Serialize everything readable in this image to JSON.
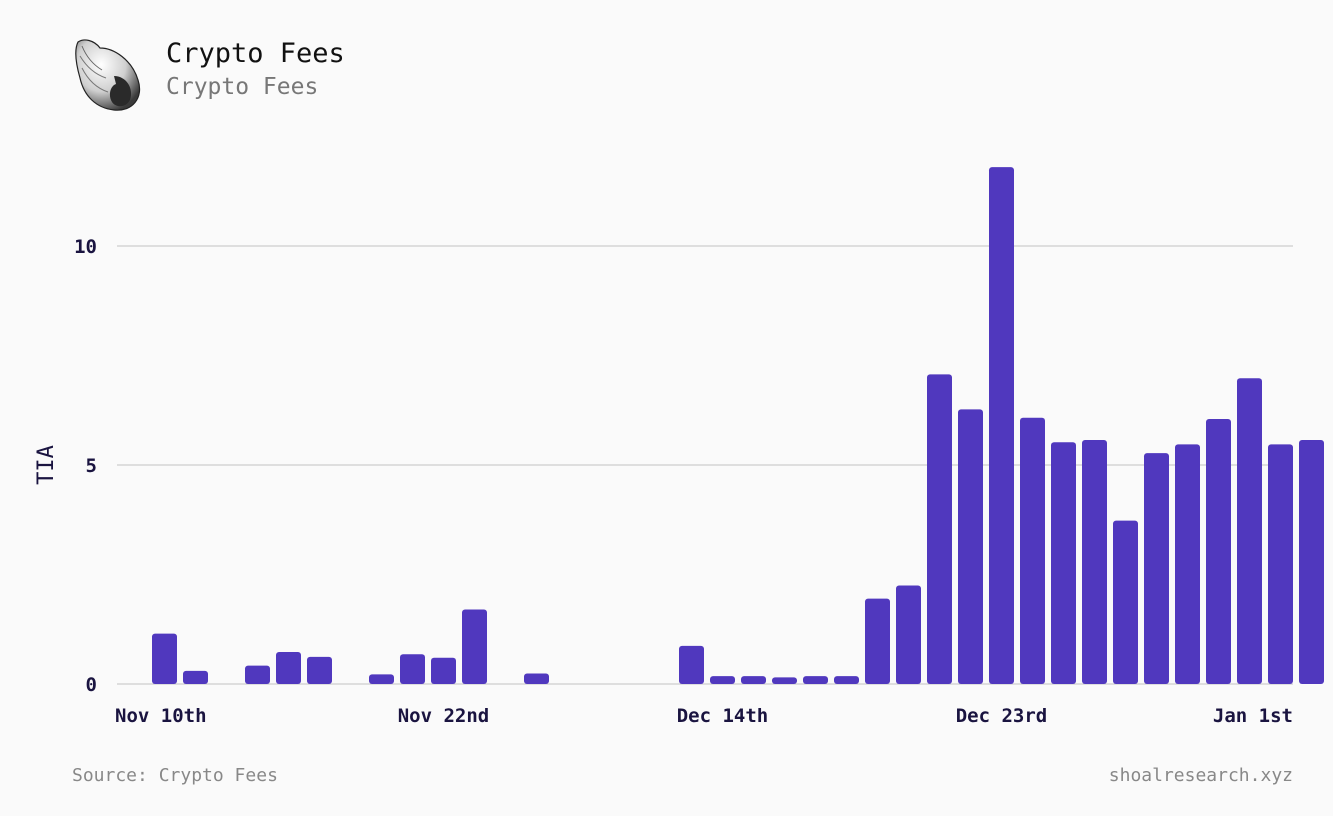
{
  "header": {
    "title": "Crypto Fees",
    "subtitle": "Crypto Fees",
    "logo_icon": "seashell-icon"
  },
  "footer": {
    "source": "Source: Crypto Fees",
    "site": "shoalresearch.xyz"
  },
  "colors": {
    "bar": "#5038be",
    "grid": "#d4d4d4",
    "axis_text": "#1a1440"
  },
  "chart_data": {
    "type": "bar",
    "ylabel": "TIA",
    "xlabel": "",
    "ylim": [
      0,
      12
    ],
    "yticks": [
      0,
      5,
      10
    ],
    "grid": "horizontal",
    "xtick_labels": [
      {
        "label": "Nov 10th",
        "index": 0
      },
      {
        "label": "Nov 22nd",
        "index": 9
      },
      {
        "label": "Dec 14th",
        "index": 18
      },
      {
        "label": "Dec 23rd",
        "index": 27
      },
      {
        "label": "Jan 1st",
        "index": 37
      }
    ],
    "series": [
      {
        "values": [
          1.15,
          0.3,
          0,
          0.42,
          0.73,
          0.62,
          0,
          0.22,
          0.68,
          0.6,
          1.7,
          0,
          0.24,
          0,
          0,
          0,
          0,
          0.87,
          0.18,
          0.18,
          0.15,
          0.18,
          0.18,
          1.95,
          2.25,
          7.07,
          6.27,
          11.8,
          6.08,
          5.52,
          5.57,
          3.73,
          5.27,
          5.47,
          6.05,
          6.98,
          5.47,
          5.57
        ]
      }
    ]
  }
}
